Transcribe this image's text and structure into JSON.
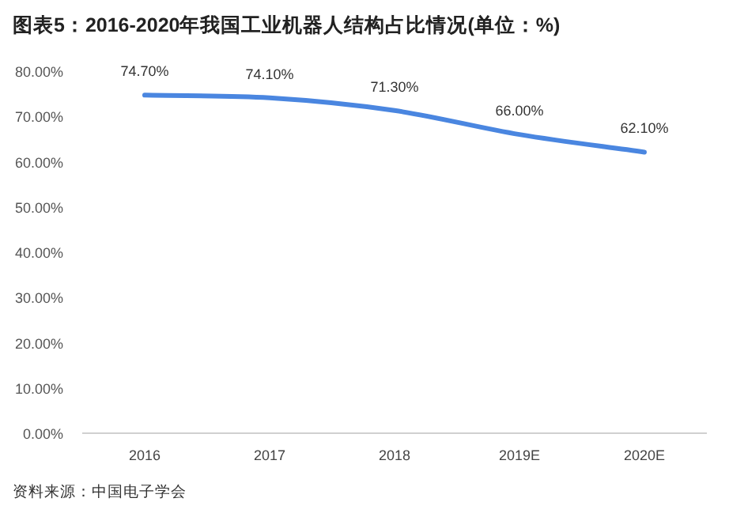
{
  "chart_data": {
    "type": "line",
    "title": "图表5：2016-2020年我国工业机器人结构占比情况(单位：%)",
    "categories": [
      "2016",
      "2017",
      "2018",
      "2019E",
      "2020E"
    ],
    "series": [
      {
        "color": "#4a86e0",
        "values": [
          74.7,
          74.1,
          71.3,
          66.0,
          62.1
        ]
      }
    ],
    "value_labels": [
      "74.70%",
      "74.10%",
      "71.30%",
      "66.00%",
      "62.10%"
    ],
    "ylim": [
      0,
      80
    ],
    "yticks": [
      {
        "value": 0,
        "label": "0.00%"
      },
      {
        "value": 10,
        "label": "10.00%"
      },
      {
        "value": 20,
        "label": "20.00%"
      },
      {
        "value": 30,
        "label": "30.00%"
      },
      {
        "value": 40,
        "label": "40.00%"
      },
      {
        "value": 50,
        "label": "50.00%"
      },
      {
        "value": 60,
        "label": "60.00%"
      },
      {
        "value": 70,
        "label": "70.00%"
      },
      {
        "value": 80,
        "label": "80.00%"
      }
    ],
    "grid": false,
    "marker": "none",
    "line_style": "solid",
    "annotations": [
      "资料来源：中国电子学会"
    ]
  }
}
